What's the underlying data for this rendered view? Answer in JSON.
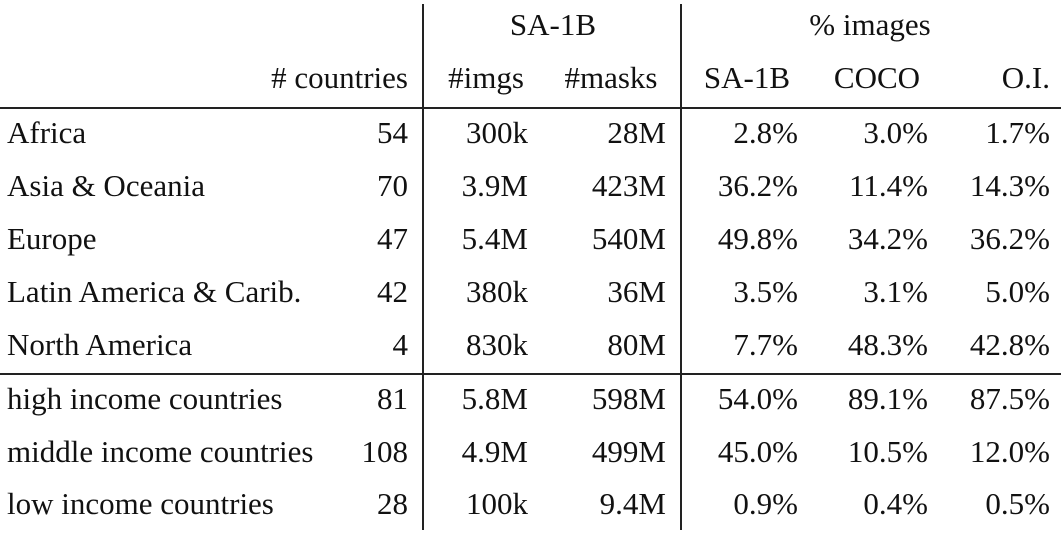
{
  "header": {
    "group1": "SA-1B",
    "group2": "% images",
    "countries": "# countries",
    "imgs": "#imgs",
    "masks": "#masks",
    "sa1b": "SA-1B",
    "coco": "COCO",
    "oi": "O.I."
  },
  "rows": [
    {
      "region": "Africa",
      "countries": "54",
      "imgs": "300k",
      "masks": "28M",
      "sa1b": "2.8%",
      "coco": "3.0%",
      "oi": "1.7%"
    },
    {
      "region": "Asia & Oceania",
      "countries": "70",
      "imgs": "3.9M",
      "masks": "423M",
      "sa1b": "36.2%",
      "coco": "11.4%",
      "oi": "14.3%"
    },
    {
      "region": "Europe",
      "countries": "47",
      "imgs": "5.4M",
      "masks": "540M",
      "sa1b": "49.8%",
      "coco": "34.2%",
      "oi": "36.2%"
    },
    {
      "region": "Latin America & Carib.",
      "countries": "42",
      "imgs": "380k",
      "masks": "36M",
      "sa1b": "3.5%",
      "coco": "3.1%",
      "oi": "5.0%"
    },
    {
      "region": "North America",
      "countries": "4",
      "imgs": "830k",
      "masks": "80M",
      "sa1b": "7.7%",
      "coco": "48.3%",
      "oi": "42.8%"
    },
    {
      "region": "high income countries",
      "countries": "81",
      "imgs": "5.8M",
      "masks": "598M",
      "sa1b": "54.0%",
      "coco": "89.1%",
      "oi": "87.5%"
    },
    {
      "region": "middle income countries",
      "countries": "108",
      "imgs": "4.9M",
      "masks": "499M",
      "sa1b": "45.0%",
      "coco": "10.5%",
      "oi": "12.0%"
    },
    {
      "region": "low income countries",
      "countries": "28",
      "imgs": "100k",
      "masks": "9.4M",
      "sa1b": "0.9%",
      "coco": "0.4%",
      "oi": "0.5%"
    }
  ]
}
